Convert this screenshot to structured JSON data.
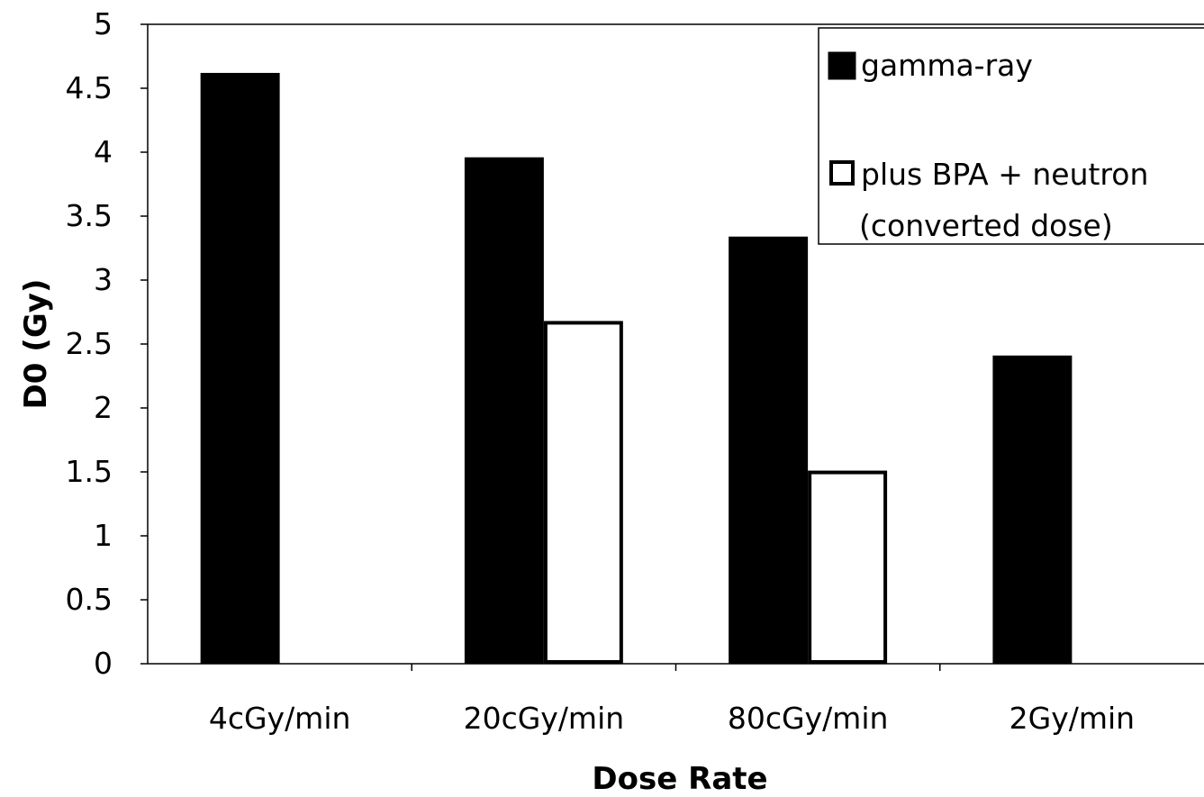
{
  "chart_data": {
    "type": "bar",
    "title": "",
    "xlabel": "Dose Rate",
    "ylabel": "D0 (Gy)",
    "categories": [
      "4cGy/min",
      "20cGy/min",
      "80cGy/min",
      "2Gy/min"
    ],
    "series": [
      {
        "name": "gamma-ray",
        "values": [
          4.62,
          3.96,
          3.34,
          2.41
        ],
        "fill": "#000000",
        "stroke": "#000000"
      },
      {
        "name": "plus BPA + neutron",
        "name_line2": "(converted dose)",
        "values": [
          null,
          2.68,
          1.51,
          null
        ],
        "fill": "#ffffff",
        "stroke": "#000000"
      }
    ],
    "ylim": [
      0,
      5
    ],
    "yticks": [
      "0",
      "0.5",
      "1",
      "1.5",
      "2",
      "2.5",
      "3",
      "3.5",
      "4",
      "4.5",
      "5"
    ],
    "ytick_values": [
      0,
      0.5,
      1,
      1.5,
      2,
      2.5,
      3,
      3.5,
      4,
      4.5,
      5
    ],
    "grid": false,
    "legend_position": "top-right"
  }
}
